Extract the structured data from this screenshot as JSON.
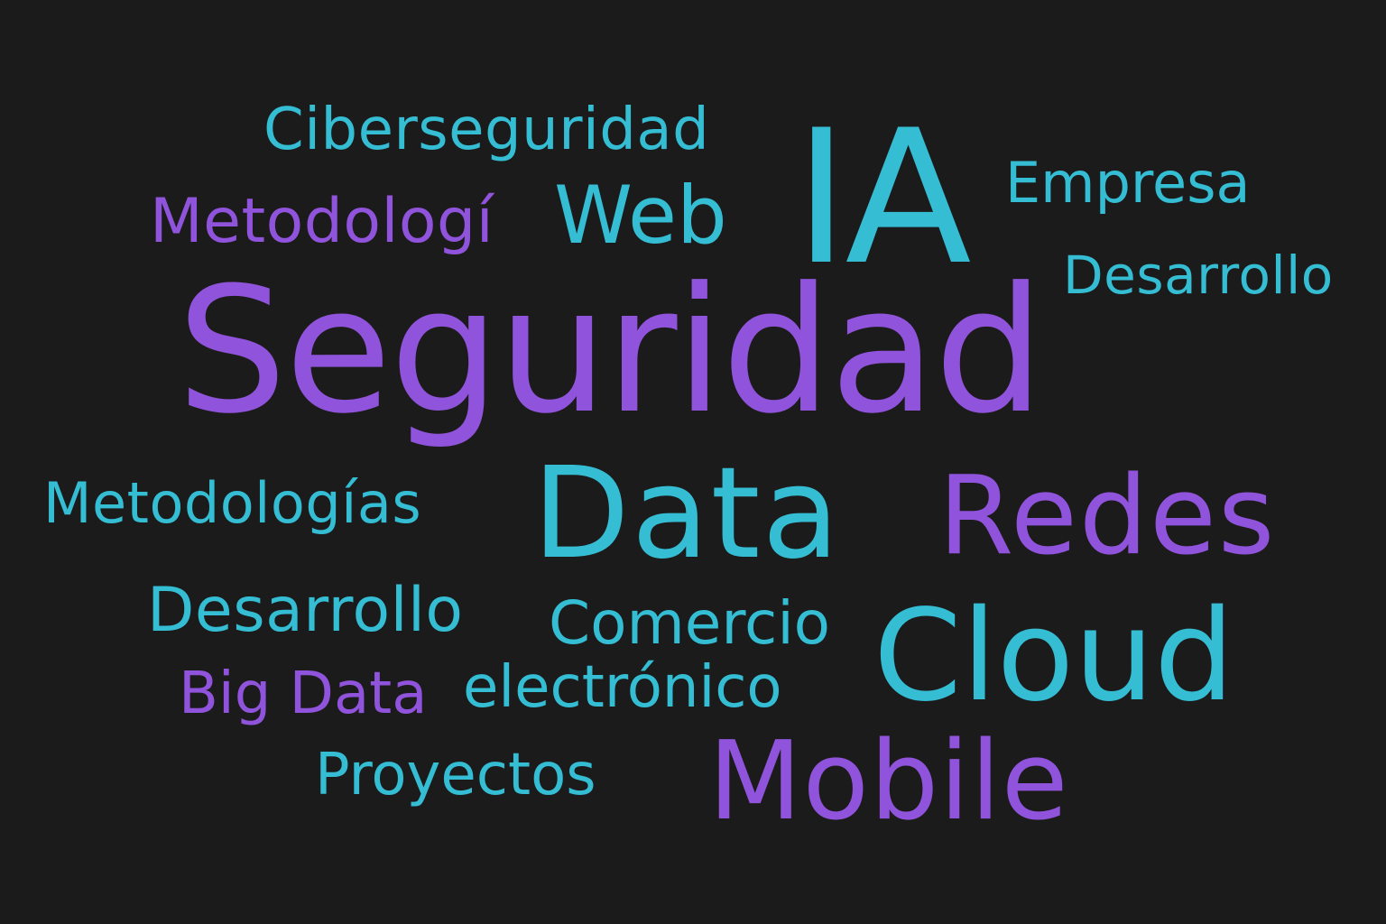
{
  "colors": {
    "background": "#1c1b1b",
    "teal": "#34bdd3",
    "purple": "#9053db"
  },
  "words": {
    "ciberseguridad": "Ciberseguridad",
    "ia": "IA",
    "empresa": "Empresa",
    "metodologi": "Metodologí",
    "web": "Web",
    "desarrollo_right": "Desarrollo",
    "seguridad": "Seguridad",
    "metodologias": "Metodologías",
    "data": "Data",
    "redes": "Redes",
    "desarrollo_left": "Desarrollo",
    "comercio": "Comercio",
    "cloud": "Cloud",
    "big_data": "Big Data",
    "electronico": "electrónico",
    "proyectos": "Proyectos",
    "mobile": "Mobile"
  }
}
